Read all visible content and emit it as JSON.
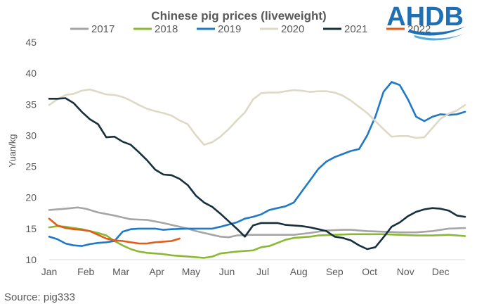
{
  "chart_data": {
    "type": "line",
    "title": "Chinese pig prices (liveweight)",
    "ylabel": "Yuan/kg",
    "xlabel": "",
    "ylim": [
      10,
      45
    ],
    "yticks": [
      10,
      15,
      20,
      25,
      30,
      35,
      40,
      45
    ],
    "xlim": [
      1,
      52
    ],
    "month_labels": [
      "Jan",
      "Feb",
      "Mar",
      "Apr",
      "May",
      "Jun",
      "Jul",
      "Aug",
      "Sep",
      "Oct",
      "Nov",
      "Dec"
    ],
    "month_weeks": [
      1,
      5.5,
      9.8,
      14.2,
      18.4,
      22.8,
      27.2,
      31.6,
      36.0,
      40.3,
      44.7,
      49.0
    ],
    "grid": false,
    "legend_position": "top",
    "source": "Source:  pig333",
    "logo_text": "AHDB",
    "series": [
      {
        "name": "2017",
        "color": "#a5a5a5",
        "points": [
          [
            1,
            18.0
          ],
          [
            3,
            18.2
          ],
          [
            4.5,
            18.4
          ],
          [
            5.5,
            18.2
          ],
          [
            7,
            17.6
          ],
          [
            9,
            17.1
          ],
          [
            10,
            16.8
          ],
          [
            11,
            16.5
          ],
          [
            13,
            16.4
          ],
          [
            15,
            15.9
          ],
          [
            16,
            15.6
          ],
          [
            18,
            15.0
          ],
          [
            19,
            14.6
          ],
          [
            20,
            14.3
          ],
          [
            21,
            14.0
          ],
          [
            22,
            13.7
          ],
          [
            23,
            13.6
          ],
          [
            24,
            13.9
          ],
          [
            26,
            14.0
          ],
          [
            28,
            14.0
          ],
          [
            30,
            14.0
          ],
          [
            31,
            14.0
          ],
          [
            33,
            14.3
          ],
          [
            35,
            14.7
          ],
          [
            37,
            14.8
          ],
          [
            38,
            14.8
          ],
          [
            40,
            14.6
          ],
          [
            42,
            14.5
          ],
          [
            44,
            14.4
          ],
          [
            46,
            14.4
          ],
          [
            48,
            14.6
          ],
          [
            50,
            15.0
          ],
          [
            52,
            15.1
          ]
        ]
      },
      {
        "name": "2018",
        "color": "#8ab833",
        "points": [
          [
            1,
            15.2
          ],
          [
            2,
            15.4
          ],
          [
            3,
            15.3
          ],
          [
            4,
            15.1
          ],
          [
            5,
            14.9
          ],
          [
            6,
            14.6
          ],
          [
            7,
            14.3
          ],
          [
            8,
            13.9
          ],
          [
            9,
            13.0
          ],
          [
            10,
            12.3
          ],
          [
            11,
            11.7
          ],
          [
            12,
            11.3
          ],
          [
            13,
            11.1
          ],
          [
            15,
            10.9
          ],
          [
            16,
            10.7
          ],
          [
            17,
            10.6
          ],
          [
            18,
            10.5
          ],
          [
            19,
            10.4
          ],
          [
            20,
            10.3
          ],
          [
            21,
            10.5
          ],
          [
            22,
            11.0
          ],
          [
            24,
            11.3
          ],
          [
            26,
            11.5
          ],
          [
            27,
            12.0
          ],
          [
            28,
            12.2
          ],
          [
            29,
            12.7
          ],
          [
            30,
            13.2
          ],
          [
            31,
            13.5
          ],
          [
            32,
            13.6
          ],
          [
            33,
            13.7
          ],
          [
            34,
            13.9
          ],
          [
            36,
            14.0
          ],
          [
            38,
            14.1
          ],
          [
            40,
            14.1
          ],
          [
            42,
            14.1
          ],
          [
            44,
            14.0
          ],
          [
            46,
            13.9
          ],
          [
            48,
            13.9
          ],
          [
            50,
            14.0
          ],
          [
            52,
            13.8
          ]
        ]
      },
      {
        "name": "2019",
        "color": "#1f78c8",
        "points": [
          [
            1,
            13.7
          ],
          [
            2,
            13.3
          ],
          [
            3,
            12.6
          ],
          [
            4,
            12.3
          ],
          [
            5,
            12.2
          ],
          [
            6,
            12.5
          ],
          [
            7,
            12.7
          ],
          [
            8,
            12.8
          ],
          [
            9,
            13.0
          ],
          [
            10,
            14.5
          ],
          [
            11,
            14.9
          ],
          [
            12,
            15.0
          ],
          [
            14,
            15.0
          ],
          [
            15,
            14.8
          ],
          [
            16,
            14.9
          ],
          [
            18,
            15.0
          ],
          [
            20,
            15.0
          ],
          [
            21,
            15.0
          ],
          [
            22,
            15.3
          ],
          [
            24,
            16.0
          ],
          [
            25,
            16.6
          ],
          [
            26,
            16.9
          ],
          [
            27,
            17.3
          ],
          [
            28,
            18.0
          ],
          [
            29,
            18.3
          ],
          [
            30,
            18.6
          ],
          [
            31,
            19.2
          ],
          [
            32,
            21.0
          ],
          [
            33,
            22.8
          ],
          [
            34,
            24.6
          ],
          [
            35,
            25.8
          ],
          [
            36,
            26.5
          ],
          [
            37,
            27.0
          ],
          [
            38,
            27.5
          ],
          [
            39,
            27.8
          ],
          [
            40,
            30.0
          ],
          [
            41,
            33.0
          ],
          [
            42,
            37.0
          ],
          [
            43,
            38.6
          ],
          [
            44,
            38.1
          ],
          [
            45,
            35.8
          ],
          [
            46,
            33.0
          ],
          [
            47,
            32.3
          ],
          [
            48,
            33.0
          ],
          [
            49,
            33.4
          ],
          [
            50,
            33.3
          ],
          [
            51,
            33.4
          ],
          [
            52,
            33.8
          ]
        ]
      },
      {
        "name": "2020",
        "color": "#ddd9c4",
        "points": [
          [
            1,
            34.9
          ],
          [
            2,
            35.8
          ],
          [
            3,
            36.5
          ],
          [
            4,
            36.7
          ],
          [
            5,
            37.2
          ],
          [
            6,
            37.4
          ],
          [
            7,
            37.0
          ],
          [
            8,
            36.6
          ],
          [
            9,
            36.5
          ],
          [
            10,
            36.2
          ],
          [
            11,
            35.6
          ],
          [
            12,
            34.9
          ],
          [
            13,
            34.3
          ],
          [
            14,
            33.9
          ],
          [
            15,
            33.6
          ],
          [
            16,
            33.2
          ],
          [
            17,
            32.4
          ],
          [
            18,
            31.8
          ],
          [
            19,
            30.0
          ],
          [
            20,
            28.5
          ],
          [
            21,
            28.9
          ],
          [
            22,
            29.8
          ],
          [
            23,
            31.0
          ],
          [
            24,
            32.4
          ],
          [
            25,
            33.7
          ],
          [
            26,
            35.8
          ],
          [
            27,
            36.8
          ],
          [
            28,
            36.9
          ],
          [
            29,
            36.9
          ],
          [
            30,
            37.1
          ],
          [
            31,
            37.3
          ],
          [
            32,
            37.2
          ],
          [
            33,
            37.0
          ],
          [
            34,
            37.1
          ],
          [
            35,
            37.1
          ],
          [
            36,
            36.9
          ],
          [
            37,
            36.4
          ],
          [
            38,
            35.6
          ],
          [
            39,
            34.6
          ],
          [
            40,
            33.6
          ],
          [
            41,
            32.3
          ],
          [
            42,
            31.0
          ],
          [
            43,
            29.8
          ],
          [
            44,
            29.9
          ],
          [
            45,
            29.9
          ],
          [
            46,
            29.6
          ],
          [
            47,
            29.7
          ],
          [
            48,
            31.2
          ],
          [
            49,
            32.7
          ],
          [
            50,
            33.5
          ],
          [
            51,
            34.0
          ],
          [
            52,
            34.9
          ]
        ]
      },
      {
        "name": "2021",
        "color": "#17303b",
        "points": [
          [
            1,
            35.9
          ],
          [
            2,
            35.9
          ],
          [
            3,
            36.0
          ],
          [
            4,
            35.2
          ],
          [
            5,
            33.8
          ],
          [
            6,
            32.6
          ],
          [
            7,
            31.8
          ],
          [
            8,
            29.7
          ],
          [
            9,
            29.8
          ],
          [
            10,
            29.0
          ],
          [
            11,
            28.5
          ],
          [
            12,
            27.3
          ],
          [
            13,
            26.0
          ],
          [
            14,
            24.5
          ],
          [
            15,
            23.7
          ],
          [
            16,
            23.6
          ],
          [
            17,
            23.0
          ],
          [
            18,
            22.0
          ],
          [
            19,
            20.3
          ],
          [
            20,
            19.2
          ],
          [
            21,
            18.5
          ],
          [
            22,
            17.4
          ],
          [
            23,
            16.2
          ],
          [
            24,
            15.0
          ],
          [
            25,
            13.7
          ],
          [
            26,
            15.5
          ],
          [
            27,
            15.9
          ],
          [
            28,
            15.9
          ],
          [
            29,
            15.9
          ],
          [
            30,
            15.6
          ],
          [
            31,
            15.5
          ],
          [
            32,
            15.4
          ],
          [
            33,
            15.2
          ],
          [
            34,
            14.9
          ],
          [
            35,
            14.6
          ],
          [
            36,
            13.7
          ],
          [
            37,
            13.5
          ],
          [
            38,
            13.1
          ],
          [
            39,
            12.3
          ],
          [
            40,
            11.7
          ],
          [
            41,
            12.0
          ],
          [
            42,
            13.6
          ],
          [
            43,
            15.3
          ],
          [
            44,
            16.0
          ],
          [
            45,
            17.0
          ],
          [
            46,
            17.7
          ],
          [
            47,
            18.1
          ],
          [
            48,
            18.3
          ],
          [
            49,
            18.2
          ],
          [
            50,
            17.9
          ],
          [
            51,
            17.1
          ],
          [
            52,
            16.9
          ]
        ]
      },
      {
        "name": "2022",
        "color": "#e05c1a",
        "points": [
          [
            1,
            16.6
          ],
          [
            2,
            15.5
          ],
          [
            3,
            15.1
          ],
          [
            4,
            14.9
          ],
          [
            5,
            14.8
          ],
          [
            6,
            14.6
          ],
          [
            7,
            14.0
          ],
          [
            8,
            13.4
          ],
          [
            9,
            13.1
          ],
          [
            10,
            13.0
          ],
          [
            11,
            12.8
          ],
          [
            12,
            12.6
          ],
          [
            13,
            12.6
          ],
          [
            14,
            12.8
          ],
          [
            15,
            12.9
          ],
          [
            16,
            13.0
          ],
          [
            17,
            13.4
          ]
        ]
      }
    ]
  }
}
